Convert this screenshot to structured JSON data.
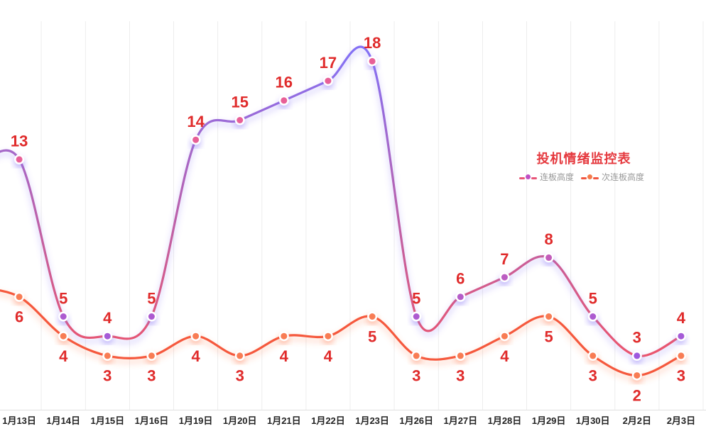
{
  "title": {
    "text": "投机情绪监控表",
    "color": "#E5393E"
  },
  "legend": [
    {
      "label": "连板高度",
      "line_color": "#E85578",
      "dot_color": "#C04FC4"
    },
    {
      "label": "次连板高度",
      "line_color": "#F2553F",
      "dot_color": "#F57B4B"
    }
  ],
  "chart_data": {
    "type": "line",
    "title": "投机情绪监控表",
    "categories": [
      "1月13日",
      "1月14日",
      "1月15日",
      "1月16日",
      "1月19日",
      "1月20日",
      "1月21日",
      "1月22日",
      "1月23日",
      "1月26日",
      "1月27日",
      "1月28日",
      "1月29日",
      "1月30日",
      "2月2日",
      "2月3日"
    ],
    "series": [
      {
        "name": "连板高度",
        "values": [
          13,
          5,
          4,
          5,
          14,
          15,
          16,
          17,
          18,
          5,
          6,
          7,
          8,
          5,
          3,
          4
        ],
        "line_gradient_top": "#8470F4",
        "line_gradient_bottom": "#F5525F",
        "glow_color": "#826EF5",
        "point_color_low": "#9659E6",
        "point_color_high": "#E85E97",
        "label_position": "above"
      },
      {
        "name": "次连板高度",
        "values": [
          6,
          4,
          3,
          3,
          4,
          3,
          4,
          4,
          5,
          3,
          3,
          4,
          5,
          3,
          2,
          3
        ],
        "line_color": "#F5593C",
        "glow_color": "#FF6E3C",
        "point_color": "#F87B52",
        "label_position": "below"
      }
    ],
    "label_color": "#E02B2B",
    "xlabel": "",
    "ylabel": "",
    "ylim": [
      0,
      20
    ],
    "grid": "vertical-only",
    "legend_position": "right-center",
    "x_axis": {
      "label_color": "#222222",
      "axis_line_color": "#E0E0E0",
      "grid_color": "#EDEDED"
    }
  }
}
